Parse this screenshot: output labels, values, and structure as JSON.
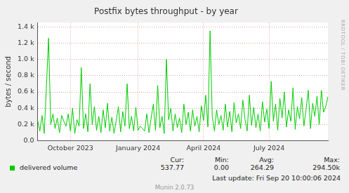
{
  "chart_data": {
    "type": "line",
    "title": "Postfix bytes throughput - by year",
    "y_label": "bytes / second",
    "categories": [
      null,
      null,
      null,
      null,
      null,
      null,
      null,
      null,
      null,
      null,
      null,
      null,
      null,
      null,
      null,
      "October 2023",
      null,
      null,
      null,
      null,
      null,
      null,
      null,
      null,
      null,
      null,
      null,
      null,
      null,
      null,
      null,
      null,
      null,
      null,
      null,
      null,
      null,
      null,
      null,
      null,
      null,
      null,
      null,
      null,
      null,
      null,
      "January 2024",
      null,
      null,
      null,
      null,
      null,
      null,
      null,
      null,
      null,
      null,
      null,
      null,
      null,
      null,
      null,
      null,
      null,
      null,
      null,
      null,
      null,
      null,
      null,
      null,
      null,
      null,
      null,
      null,
      null,
      "April 2024",
      null,
      null,
      null,
      null,
      null,
      null,
      null,
      null,
      null,
      null,
      null,
      null,
      null,
      null,
      null,
      null,
      null,
      null,
      null,
      null,
      null,
      null,
      null,
      null,
      null,
      null,
      null,
      null,
      null,
      "July 2024",
      null,
      null,
      null,
      null,
      null,
      null,
      null,
      null,
      null,
      null,
      null,
      null,
      null,
      null,
      null,
      null,
      null,
      null,
      null,
      null,
      null,
      null,
      null,
      null,
      null,
      null,
      null
    ],
    "series": [
      {
        "name": "delivered volume",
        "color": "#00cc00",
        "values": [
          250,
          120,
          310,
          90,
          650,
          1260,
          200,
          330,
          150,
          280,
          100,
          310,
          240,
          180,
          330,
          120,
          400,
          90,
          260,
          180,
          900,
          150,
          330,
          110,
          700,
          200,
          420,
          130,
          300,
          100,
          380,
          160,
          460,
          120,
          290,
          90,
          250,
          420,
          110,
          360,
          180,
          700,
          150,
          300,
          120,
          410,
          130,
          180,
          150,
          120,
          330,
          100,
          280,
          450,
          130,
          680,
          160,
          300,
          90,
          1000,
          260,
          400,
          120,
          330,
          160,
          280,
          100,
          450,
          200,
          350,
          120,
          380,
          180,
          300,
          110,
          430,
          250,
          560,
          170,
          1350,
          300,
          120,
          380,
          200,
          310,
          130,
          450,
          170,
          360,
          110,
          470,
          220,
          330,
          150,
          500,
          260,
          120,
          560,
          190,
          410,
          160,
          330,
          120,
          480,
          230,
          390,
          150,
          730,
          240,
          450,
          130,
          520,
          280,
          600,
          170,
          380,
          240,
          650,
          140,
          420,
          270,
          530,
          180,
          390,
          620,
          150,
          460,
          300,
          550,
          200,
          620,
          350,
          420,
          540
        ]
      }
    ],
    "ylim": [
      0,
      1450
    ],
    "yticks": [
      {
        "value": 0,
        "label": "0.0"
      },
      {
        "value": 200,
        "label": "0.2 k"
      },
      {
        "value": 400,
        "label": "0.4 k"
      },
      {
        "value": 600,
        "label": "0.6 k"
      },
      {
        "value": 800,
        "label": "0.8 k"
      },
      {
        "value": 1000,
        "label": "1.0 k"
      },
      {
        "value": 1200,
        "label": "1.2 k"
      },
      {
        "value": 1400,
        "label": "1.4 k"
      }
    ],
    "grid": true,
    "stats": [
      {
        "label": "Cur:",
        "text": "537.77"
      },
      {
        "label": "Min:",
        "text": "0.00"
      },
      {
        "label": "Avg:",
        "text": "264.29"
      },
      {
        "label": "Max:",
        "text": "294.50k"
      }
    ],
    "last_update": "Last update: Fri Sep 20 10:00:06 2024",
    "credit": "Munin 2.0.73",
    "watermark": "RRDTOOL / TOBI OETIKER"
  }
}
